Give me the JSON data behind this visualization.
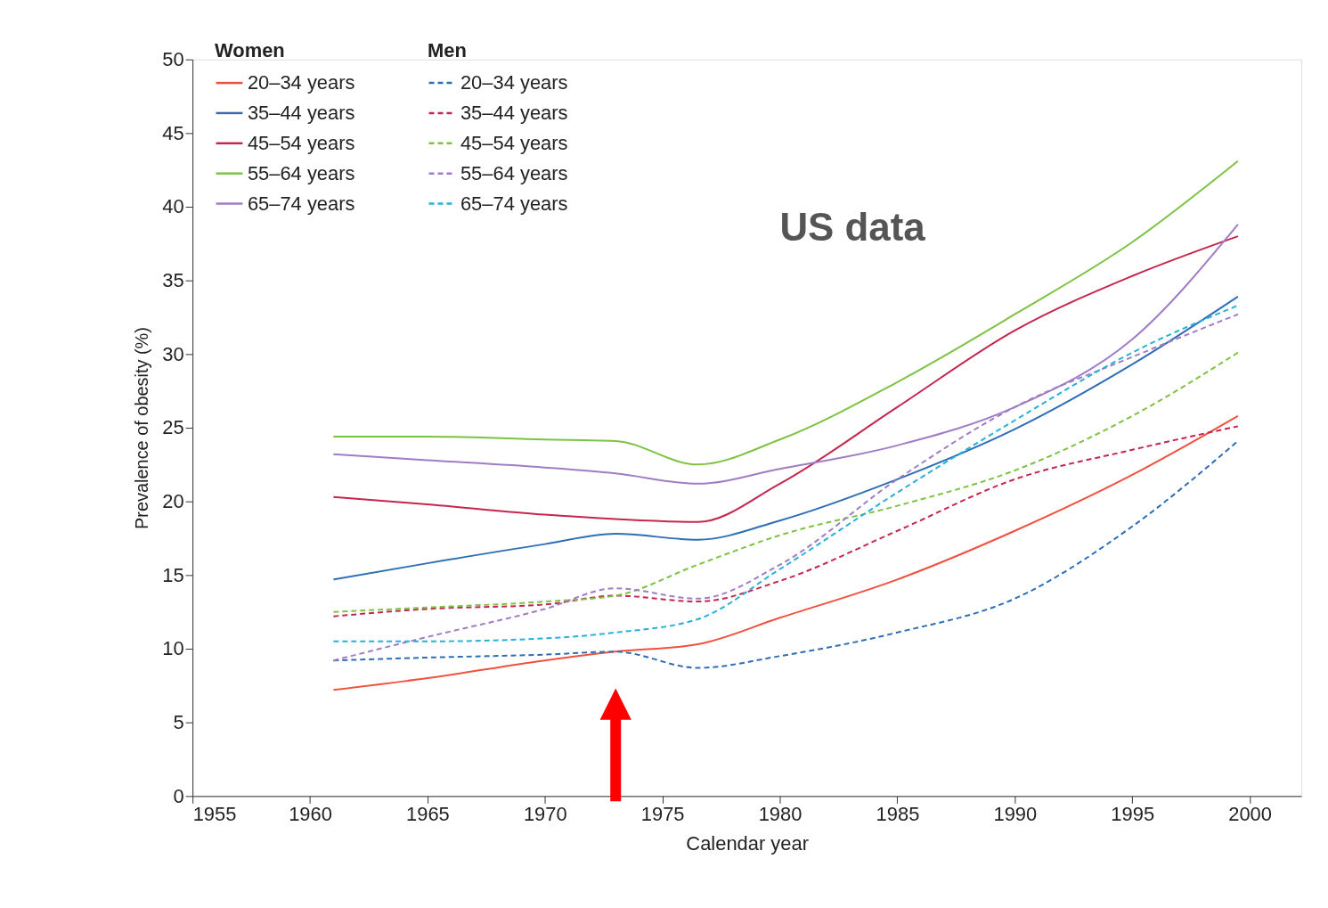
{
  "chart_data": {
    "type": "line",
    "xlabel": "Calendar year",
    "ylabel": "Prevalence of obesity (%)",
    "legend_title": [
      "Women",
      "Men"
    ],
    "legend": "top left",
    "grid": false,
    "marker": "none",
    "annotations": [
      "US data"
    ],
    "xlim": [
      1955,
      2002.2
    ],
    "xticks": [
      1955,
      1960,
      1965,
      1970,
      1975,
      1980,
      1985,
      1990,
      1995,
      2000
    ],
    "ylim": [
      0,
      50
    ],
    "yticks": [
      0,
      5,
      10,
      15,
      20,
      25,
      30,
      35,
      40,
      45,
      50
    ],
    "x": [
      1961,
      1965,
      1970,
      1973,
      1976.5,
      1980,
      1985,
      1990,
      1995,
      1999.5
    ],
    "series": [
      {
        "name": "20–34 years",
        "color": "#f0513f",
        "line_style": "solid",
        "values": [
          7.2,
          8.0,
          9.2,
          9.8,
          10.3,
          12.1,
          14.7,
          18.0,
          21.8,
          25.8
        ]
      },
      {
        "name": "35–44 years",
        "color": "#2f6eb5",
        "line_style": "solid",
        "values": [
          14.7,
          15.8,
          17.1,
          17.8,
          17.4,
          18.7,
          21.5,
          24.9,
          29.3,
          33.9
        ]
      },
      {
        "name": "45–54 years",
        "color": "#c4264e",
        "line_style": "solid",
        "values": [
          20.3,
          19.8,
          19.1,
          18.8,
          18.6,
          21.2,
          26.4,
          31.6,
          35.3,
          38.0
        ]
      },
      {
        "name": "55–64 years",
        "color": "#7dc242",
        "line_style": "solid",
        "values": [
          24.4,
          24.4,
          24.2,
          24.1,
          22.5,
          24.2,
          28.1,
          32.7,
          37.6,
          43.1
        ]
      },
      {
        "name": "65–74 years",
        "color": "#a07cc5",
        "line_style": "solid",
        "values": [
          23.2,
          22.8,
          22.3,
          21.9,
          21.2,
          22.2,
          23.8,
          26.4,
          31.0,
          38.8
        ]
      },
      {
        "name": "20–34 years",
        "color": "#2f6eb5",
        "line_style": "dashed",
        "values": [
          9.2,
          9.4,
          9.6,
          9.8,
          8.7,
          9.5,
          11.1,
          13.4,
          18.3,
          24.1
        ]
      },
      {
        "name": "35–44 years",
        "color": "#c4264e",
        "line_style": "dashed",
        "values": [
          12.2,
          12.7,
          13.0,
          13.6,
          13.2,
          14.6,
          18.0,
          21.5,
          23.5,
          25.1
        ]
      },
      {
        "name": "45–54 years",
        "color": "#7dc242",
        "line_style": "dashed",
        "values": [
          12.5,
          12.8,
          13.2,
          13.6,
          15.7,
          17.7,
          19.7,
          22.1,
          25.8,
          30.1
        ]
      },
      {
        "name": "55–64 years",
        "color": "#a07cc5",
        "line_style": "dashed",
        "values": [
          9.2,
          10.8,
          12.7,
          14.1,
          13.4,
          15.7,
          21.5,
          26.4,
          29.8,
          32.7
        ]
      },
      {
        "name": "65–74 years",
        "color": "#27b0d8",
        "line_style": "dashed",
        "values": [
          10.5,
          10.5,
          10.7,
          11.1,
          12.0,
          15.4,
          20.6,
          25.5,
          30.1,
          33.3
        ]
      }
    ]
  }
}
